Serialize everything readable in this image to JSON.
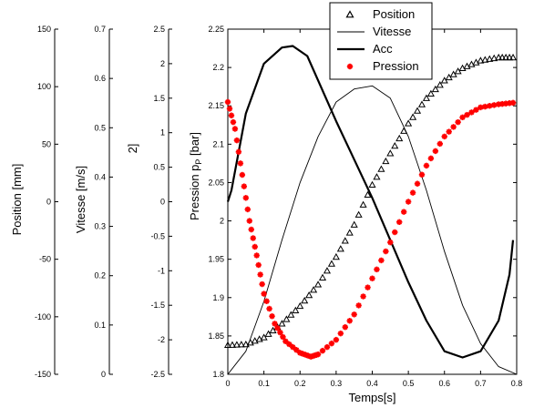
{
  "chart_data": {
    "type": "line",
    "xlabel": "Temps[s]",
    "x_ticks": [
      "0",
      "0.1",
      "0.2",
      "0.3",
      "0.4",
      "0.5",
      "0.6",
      "0.7",
      "0.8"
    ],
    "xlim": [
      0,
      0.8
    ],
    "axes": [
      {
        "id": "position",
        "label": "Position [mm]",
        "ylim": [
          -150,
          150
        ],
        "ticks": [
          "-150",
          "-100",
          "-50",
          "0",
          "50",
          "100",
          "150"
        ]
      },
      {
        "id": "vitesse",
        "label": "Vitesse [m/s]",
        "ylim": [
          0,
          0.7
        ],
        "ticks": [
          "0",
          "0.1",
          "0.2",
          "0.3",
          "0.4",
          "0.5",
          "0.6",
          "0.7"
        ]
      },
      {
        "id": "acc",
        "label": "2]",
        "ylim": [
          -2.5,
          2.5
        ],
        "ticks": [
          "-2.5",
          "-2",
          "-1.5",
          "-1",
          "-0.5",
          "0",
          "0.5",
          "1",
          "1.5",
          "2",
          "2.5"
        ]
      },
      {
        "id": "pression",
        "label_main": "Pression p",
        "label_sub": "P",
        "label_tail": " [bar]",
        "ylim": [
          1.8,
          2.25
        ],
        "ticks": [
          "1.8",
          "1.85",
          "1.9",
          "1.95",
          "2",
          "2.05",
          "2.1",
          "2.15",
          "2.2",
          "2.25"
        ]
      }
    ],
    "series": [
      {
        "name": "Position",
        "axis": "pression",
        "style": "triangle-markers",
        "color": "#000000",
        "x": [
          0.0,
          0.05,
          0.1,
          0.15,
          0.2,
          0.25,
          0.3,
          0.35,
          0.4,
          0.45,
          0.5,
          0.55,
          0.6,
          0.65,
          0.7,
          0.75,
          0.79
        ],
        "y": [
          1.838,
          1.839,
          1.848,
          1.866,
          1.889,
          1.917,
          1.953,
          1.995,
          2.047,
          2.088,
          2.127,
          2.16,
          2.183,
          2.199,
          2.209,
          2.213,
          2.213
        ]
      },
      {
        "name": "Vitesse",
        "axis": "pression",
        "style": "thin-line",
        "color": "#000000",
        "x": [
          0.0,
          0.05,
          0.1,
          0.15,
          0.2,
          0.25,
          0.3,
          0.35,
          0.4,
          0.45,
          0.5,
          0.55,
          0.6,
          0.65,
          0.7,
          0.75,
          0.8
        ],
        "y": [
          1.8,
          1.83,
          1.895,
          1.975,
          2.05,
          2.11,
          2.155,
          2.172,
          2.176,
          2.16,
          2.11,
          2.04,
          1.96,
          1.89,
          1.84,
          1.81,
          1.8
        ]
      },
      {
        "name": "Acc",
        "axis": "pression",
        "style": "thick-line",
        "color": "#000000",
        "x": [
          0.0,
          0.01,
          0.05,
          0.1,
          0.15,
          0.18,
          0.22,
          0.3,
          0.4,
          0.5,
          0.55,
          0.6,
          0.65,
          0.7,
          0.75,
          0.78,
          0.79
        ],
        "y": [
          2.025,
          2.04,
          2.14,
          2.205,
          2.226,
          2.228,
          2.215,
          2.13,
          2.03,
          1.92,
          1.87,
          1.83,
          1.822,
          1.83,
          1.87,
          1.93,
          1.975
        ]
      },
      {
        "name": "Pression",
        "axis": "pression",
        "style": "star-markers",
        "color": "#ff0000",
        "x": [
          0.0,
          0.02,
          0.04,
          0.06,
          0.08,
          0.1,
          0.13,
          0.16,
          0.2,
          0.23,
          0.25,
          0.3,
          0.35,
          0.4,
          0.45,
          0.5,
          0.55,
          0.6,
          0.65,
          0.7,
          0.75,
          0.79
        ],
        "y": [
          2.155,
          2.12,
          2.06,
          2.0,
          1.955,
          1.905,
          1.866,
          1.843,
          1.828,
          1.823,
          1.826,
          1.845,
          1.878,
          1.925,
          1.972,
          2.025,
          2.072,
          2.11,
          2.135,
          2.148,
          2.152,
          2.154
        ]
      }
    ],
    "legend_position": "top-center"
  }
}
